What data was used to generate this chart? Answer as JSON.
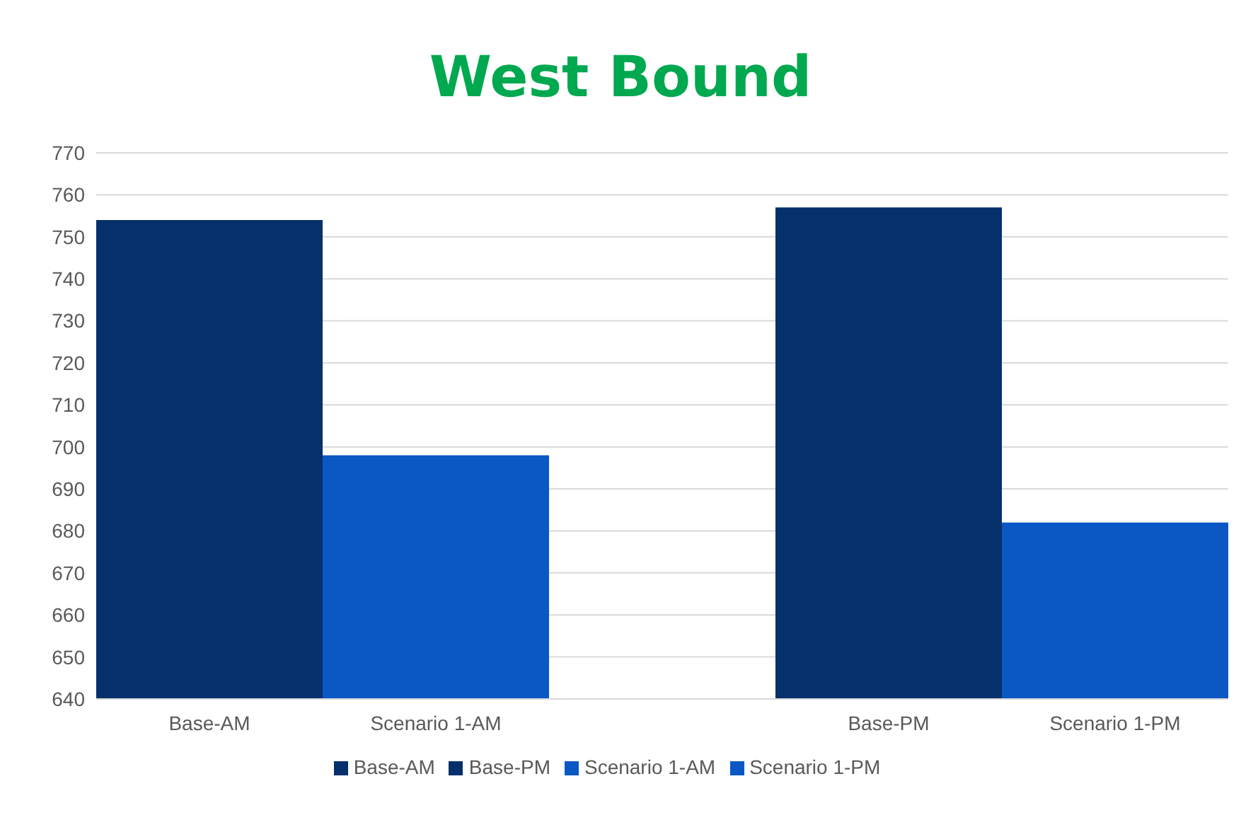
{
  "chart_data": {
    "type": "bar",
    "title": "West Bound",
    "categories": [
      "Base-AM",
      "Scenario 1-AM",
      "Base-PM",
      "Scenario 1-PM"
    ],
    "stacked": true,
    "series": [
      {
        "name": "Base-AM",
        "color": "#06306b",
        "values": [
          754,
          null,
          null,
          null
        ]
      },
      {
        "name": "Scenario 1-AM",
        "color": "#0b57c4",
        "values": [
          null,
          698,
          null,
          null
        ]
      },
      {
        "name": "Base-PM",
        "color": "#06306b",
        "values": [
          null,
          null,
          757,
          null
        ]
      },
      {
        "name": "Scenario 1-PM",
        "color": "#0b57c4",
        "values": [
          null,
          null,
          null,
          682
        ]
      }
    ],
    "ylim": [
      640,
      770
    ],
    "yticks": [
      640,
      650,
      660,
      670,
      680,
      690,
      700,
      710,
      720,
      730,
      740,
      750,
      760,
      770
    ],
    "grid": "y",
    "legend": "bottom"
  }
}
